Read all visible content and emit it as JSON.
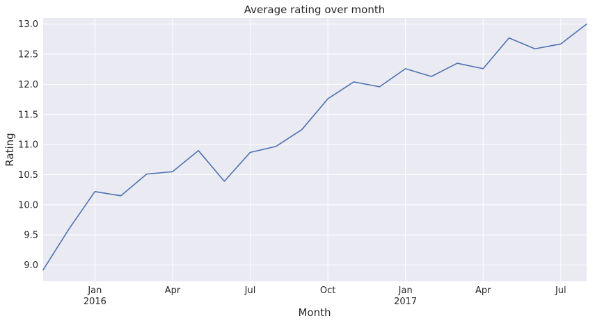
{
  "chart_data": {
    "type": "line",
    "title": "Average rating over month",
    "xlabel": "Month",
    "ylabel": "Rating",
    "x": [
      "2015-11",
      "2015-12",
      "2016-01",
      "2016-02",
      "2016-03",
      "2016-04",
      "2016-05",
      "2016-06",
      "2016-07",
      "2016-08",
      "2016-09",
      "2016-10",
      "2016-11",
      "2016-12",
      "2017-01",
      "2017-02",
      "2017-03",
      "2017-04",
      "2017-05",
      "2017-06",
      "2017-07",
      "2017-08"
    ],
    "series": [
      {
        "values": [
          8.92,
          9.6,
          10.22,
          10.15,
          10.51,
          10.55,
          10.9,
          10.39,
          10.87,
          10.97,
          11.25,
          11.76,
          12.04,
          11.96,
          12.26,
          12.13,
          12.35,
          12.26,
          12.77,
          12.59,
          12.67,
          13.0
        ],
        "color": "#4c72b0"
      }
    ],
    "ylim": [
      8.73,
      13.1
    ],
    "yticks": [
      "9.0",
      "9.5",
      "10.0",
      "10.5",
      "11.0",
      "11.5",
      "12.0",
      "12.5",
      "13.0"
    ],
    "xticks": [
      {
        "at": "2016-01",
        "label": "Jan",
        "sublabel": "2016"
      },
      {
        "at": "2016-04",
        "label": "Apr"
      },
      {
        "at": "2016-07",
        "label": "Jul"
      },
      {
        "at": "2016-10",
        "label": "Oct"
      },
      {
        "at": "2017-01",
        "label": "Jan",
        "sublabel": "2017"
      },
      {
        "at": "2017-04",
        "label": "Apr"
      },
      {
        "at": "2017-07",
        "label": "Jul"
      }
    ],
    "grid": true,
    "style": {
      "plot_background": "#eaeaf2",
      "grid_color": "#ffffff",
      "text_color": "#262626"
    }
  }
}
